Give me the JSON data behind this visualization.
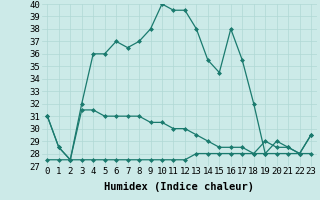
{
  "xlabel": "Humidex (Indice chaleur)",
  "x": [
    0,
    1,
    2,
    3,
    4,
    5,
    6,
    7,
    8,
    9,
    10,
    11,
    12,
    13,
    14,
    15,
    16,
    17,
    18,
    19,
    20,
    21,
    22,
    23
  ],
  "line1": [
    31,
    28.5,
    27.5,
    32,
    36,
    36,
    37,
    36.5,
    37,
    38,
    40,
    39.5,
    39.5,
    38,
    35.5,
    34.5,
    38,
    35.5,
    32,
    28,
    29,
    28.5,
    28,
    29.5
  ],
  "line2": [
    31,
    28.5,
    27.5,
    31.5,
    31.5,
    31,
    31,
    31,
    31,
    30.5,
    30.5,
    30,
    30,
    29.5,
    29,
    28.5,
    28.5,
    28.5,
    28,
    29,
    28.5,
    28.5,
    28,
    29.5
  ],
  "line3": [
    27.5,
    27.5,
    27.5,
    27.5,
    27.5,
    27.5,
    27.5,
    27.5,
    27.5,
    27.5,
    27.5,
    27.5,
    27.5,
    28,
    28,
    28,
    28,
    28,
    28,
    28,
    28,
    28,
    28,
    28
  ],
  "line_color": "#1a7a6e",
  "bg_color": "#cceae8",
  "grid_color": "#b0d8d5",
  "ylim": [
    27,
    40
  ],
  "yticks": [
    27,
    28,
    29,
    30,
    31,
    32,
    33,
    34,
    35,
    36,
    37,
    38,
    39,
    40
  ],
  "xticks": [
    0,
    1,
    2,
    3,
    4,
    5,
    6,
    7,
    8,
    9,
    10,
    11,
    12,
    13,
    14,
    15,
    16,
    17,
    18,
    19,
    20,
    21,
    22,
    23
  ],
  "xlabel_fontsize": 7.5,
  "tick_fontsize": 6.5
}
